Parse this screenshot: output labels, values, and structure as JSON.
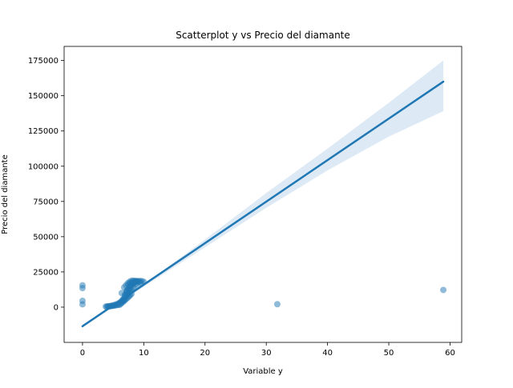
{
  "chart_data": {
    "type": "scatter",
    "title": "Scatterplot y vs Precio del diamante",
    "xlabel": "Variable y",
    "ylabel": "Precio del diamante",
    "xlim": [
      -3.0,
      61.9
    ],
    "ylim": [
      -25000,
      185000
    ],
    "xticks": [
      0,
      10,
      20,
      30,
      40,
      50,
      60
    ],
    "xtick_labels": [
      "0",
      "10",
      "20",
      "30",
      "40",
      "50",
      "60"
    ],
    "yticks": [
      0,
      25000,
      50000,
      75000,
      100000,
      125000,
      150000,
      175000
    ],
    "ytick_labels": [
      "0",
      "25000",
      "50000",
      "75000",
      "100000",
      "125000",
      "150000",
      "175000"
    ],
    "grid": false,
    "point_color": "#1f77b4",
    "line_color": "#1f77b4",
    "band_color": "#c6dbef",
    "series": [
      {
        "kind": "scatter",
        "x": [
          0,
          0,
          0,
          0,
          31.8,
          58.9,
          3.8,
          4.0,
          4.2,
          4.4,
          4.6,
          4.8,
          5.0,
          5.2,
          5.4,
          5.6,
          5.8,
          4.1,
          4.5,
          4.9,
          5.3,
          5.7,
          6.0,
          6.2,
          6.4,
          6.6,
          6.8,
          6.0,
          6.2,
          6.4,
          6.6,
          6.8,
          7.0,
          7.2,
          7.4,
          7.6,
          7.8,
          6.5,
          6.7,
          6.9,
          7.1,
          7.3,
          7.5,
          7.7,
          7.9,
          8.1,
          8.3,
          7.0,
          7.2,
          7.4,
          7.6,
          7.8,
          8.0,
          8.2,
          8.4,
          8.6,
          8.8,
          7.3,
          7.6,
          7.9,
          8.2,
          8.5,
          8.8,
          9.1,
          9.4,
          9.7,
          10.0,
          6.8,
          7.1,
          7.4,
          7.7,
          8.0,
          8.3,
          8.6,
          8.9,
          9.2,
          9.5,
          7.5,
          7.8,
          8.1,
          8.4,
          8.7,
          9.0,
          6.4,
          6.9,
          7.2,
          8.0
        ],
        "y": [
          15500,
          13500,
          4500,
          2000,
          2100,
          12200,
          400,
          500,
          600,
          700,
          800,
          900,
          1000,
          1100,
          1300,
          1500,
          1700,
          300,
          650,
          1200,
          1800,
          2400,
          3000,
          3500,
          4000,
          4600,
          5200,
          1500,
          2200,
          2900,
          3700,
          4500,
          5300,
          6100,
          6900,
          7700,
          8500,
          5000,
          6000,
          7000,
          8000,
          9000,
          10000,
          11000,
          12000,
          13000,
          14000,
          9000,
          10500,
          12000,
          13500,
          15000,
          16000,
          17000,
          17500,
          18000,
          18500,
          12000,
          13500,
          15000,
          16500,
          17500,
          18200,
          18500,
          18600,
          18400,
          18000,
          14000,
          15500,
          17000,
          18000,
          18700,
          18800,
          18600,
          18300,
          17800,
          17500,
          16000,
          17000,
          17500,
          18000,
          16500,
          15000,
          10000,
          8500,
          11500,
          9500
        ],
        "marker_alpha": 0.5
      },
      {
        "kind": "regression_line",
        "x": [
          0,
          58.9
        ],
        "y": [
          -13500,
          160000
        ]
      },
      {
        "kind": "confidence_band",
        "x": [
          0,
          10,
          20,
          30,
          40,
          50,
          58.9
        ],
        "lower": [
          -14500,
          14500,
          42500,
          70500,
          97000,
          121000,
          139000
        ],
        "upper": [
          -12500,
          16000,
          48000,
          81000,
          112500,
          145000,
          175000
        ]
      }
    ]
  }
}
